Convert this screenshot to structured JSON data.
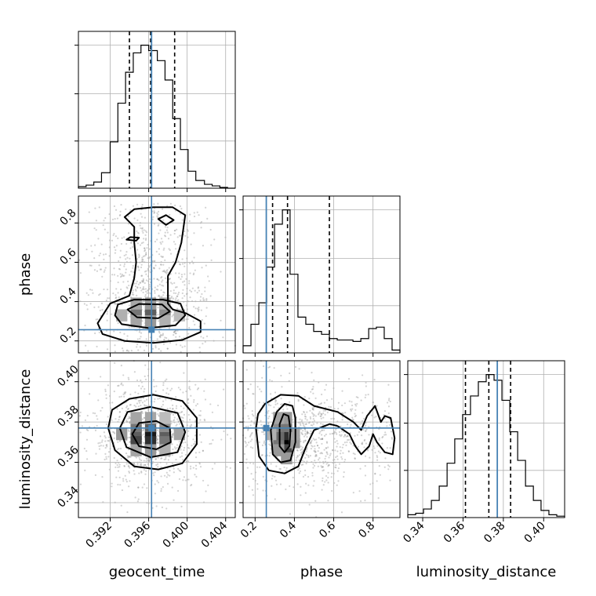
{
  "chart_data": {
    "type": "corner",
    "parameters": [
      "geocent_time",
      "phase",
      "luminosity_distance"
    ],
    "axis_labels": {
      "x": [
        "geocent_time",
        "phase",
        "luminosity_distance"
      ],
      "y": [
        "",
        "phase",
        "luminosity_distance"
      ]
    },
    "ranges": {
      "geocent_time": [
        0.3887,
        0.405
      ],
      "phase": [
        0.139,
        0.937
      ],
      "luminosity_distance": [
        0.3326,
        0.4104
      ]
    },
    "ticks": {
      "geocent_time": [
        "0.392",
        "0.396",
        "0.400",
        "0.404"
      ],
      "phase": [
        "0.2",
        "0.4",
        "0.6",
        "0.8"
      ],
      "phase_y": [
        "0.2",
        "0.4",
        "0.6",
        "0.8"
      ],
      "luminosity_distance": [
        "0.34",
        "0.36",
        "0.38",
        "0.40"
      ]
    },
    "tick_values": {
      "geocent_time": [
        0.392,
        0.396,
        0.4,
        0.404
      ],
      "phase": [
        0.2,
        0.4,
        0.6,
        0.8
      ],
      "luminosity_distance": [
        0.34,
        0.36,
        0.38,
        0.4
      ]
    },
    "truths": {
      "geocent_time": 0.3963,
      "phase": 0.257,
      "luminosity_distance": 0.377
    },
    "truth_color": "#4682b4",
    "quantiles": {
      "geocent_time": [
        0.394,
        0.3962,
        0.3987
      ],
      "phase": [
        0.289,
        0.365,
        0.578
      ],
      "luminosity_distance": [
        0.3612,
        0.3728,
        0.3836
      ]
    },
    "histograms": {
      "geocent_time": {
        "edges": [
          0.3887,
          0.3895,
          0.3903,
          0.3911,
          0.392,
          0.3928,
          0.3936,
          0.3944,
          0.3952,
          0.396,
          0.3969,
          0.3977,
          0.3985,
          0.3993,
          0.4001,
          0.4009,
          0.4018,
          0.4026,
          0.4034,
          0.4042,
          0.405
        ],
        "counts": [
          2,
          4,
          8,
          20,
          60,
          110,
          150,
          175,
          185,
          178,
          165,
          140,
          90,
          50,
          22,
          10,
          5,
          3,
          1,
          0
        ]
      },
      "phase": {
        "edges": [
          0.139,
          0.179,
          0.219,
          0.259,
          0.299,
          0.339,
          0.378,
          0.418,
          0.458,
          0.498,
          0.538,
          0.578,
          0.618,
          0.658,
          0.698,
          0.738,
          0.778,
          0.817,
          0.857,
          0.897,
          0.937
        ],
        "counts": [
          0.05,
          0.2,
          0.35,
          0.6,
          0.9,
          1.0,
          0.55,
          0.25,
          0.2,
          0.15,
          0.13,
          0.1,
          0.09,
          0.09,
          0.08,
          0.1,
          0.17,
          0.18,
          0.1,
          0.02
        ]
      },
      "luminosity_distance": {
        "edges": [
          0.3326,
          0.3365,
          0.3404,
          0.3443,
          0.3482,
          0.3521,
          0.3559,
          0.3598,
          0.3637,
          0.3676,
          0.3715,
          0.3754,
          0.3793,
          0.3832,
          0.3871,
          0.391,
          0.3949,
          0.3987,
          0.4026,
          0.4065,
          0.4104
        ],
        "counts": [
          0.02,
          0.03,
          0.06,
          0.12,
          0.22,
          0.38,
          0.55,
          0.72,
          0.85,
          0.95,
          1.0,
          0.96,
          0.82,
          0.6,
          0.4,
          0.22,
          0.12,
          0.05,
          0.02,
          0.01
        ]
      }
    },
    "contours_2d": {
      "geocent_time_vs_phase": [
        {
          "level": "outer",
          "points": [
            [
              0.3907,
              0.29
            ],
            [
              0.3912,
              0.235
            ],
            [
              0.3935,
              0.2
            ],
            [
              0.3965,
              0.19
            ],
            [
              0.3995,
              0.205
            ],
            [
              0.4014,
              0.245
            ],
            [
              0.4014,
              0.3
            ],
            [
              0.3999,
              0.34
            ],
            [
              0.3985,
              0.36
            ],
            [
              0.398,
              0.39
            ],
            [
              0.398,
              0.53
            ],
            [
              0.3988,
              0.6
            ],
            [
              0.3994,
              0.7
            ],
            [
              0.3998,
              0.84
            ],
            [
              0.3985,
              0.88
            ],
            [
              0.3965,
              0.88
            ],
            [
              0.3945,
              0.87
            ],
            [
              0.3935,
              0.83
            ],
            [
              0.3945,
              0.78
            ],
            [
              0.3945,
              0.7
            ],
            [
              0.3947,
              0.6
            ],
            [
              0.3945,
              0.52
            ],
            [
              0.394,
              0.43
            ],
            [
              0.392,
              0.39
            ]
          ]
        },
        {
          "level": "middle",
          "points": [
            [
              0.3925,
              0.33
            ],
            [
              0.3932,
              0.285
            ],
            [
              0.396,
              0.265
            ],
            [
              0.3988,
              0.28
            ],
            [
              0.3998,
              0.33
            ],
            [
              0.3993,
              0.39
            ],
            [
              0.3975,
              0.41
            ],
            [
              0.3945,
              0.41
            ],
            [
              0.3928,
              0.385
            ]
          ]
        },
        {
          "level": "inner",
          "points": [
            [
              0.3938,
              0.36
            ],
            [
              0.3948,
              0.32
            ],
            [
              0.397,
              0.315
            ],
            [
              0.3982,
              0.35
            ],
            [
              0.3974,
              0.385
            ],
            [
              0.395,
              0.388
            ]
          ]
        },
        {
          "level": "island-1",
          "points": [
            [
              0.397,
              0.82
            ],
            [
              0.3978,
              0.79
            ],
            [
              0.3986,
              0.815
            ],
            [
              0.3978,
              0.84
            ]
          ]
        },
        {
          "level": "island-2",
          "points": [
            [
              0.3937,
              0.715
            ],
            [
              0.3947,
              0.71
            ],
            [
              0.395,
              0.725
            ],
            [
              0.3941,
              0.728
            ]
          ]
        }
      ],
      "geocent_time_vs_luminosity_distance": [
        {
          "level": "outer",
          "points": [
            [
              0.3918,
              0.377
            ],
            [
              0.3925,
              0.366
            ],
            [
              0.3945,
              0.358
            ],
            [
              0.397,
              0.3565
            ],
            [
              0.3995,
              0.3595
            ],
            [
              0.401,
              0.369
            ],
            [
              0.401,
              0.382
            ],
            [
              0.3995,
              0.3905
            ],
            [
              0.3965,
              0.3935
            ],
            [
              0.394,
              0.3915
            ],
            [
              0.3922,
              0.386
            ]
          ]
        },
        {
          "level": "middle",
          "points": [
            [
              0.393,
              0.377
            ],
            [
              0.3937,
              0.3675
            ],
            [
              0.3962,
              0.3625
            ],
            [
              0.399,
              0.365
            ],
            [
              0.3998,
              0.375
            ],
            [
              0.399,
              0.3845
            ],
            [
              0.3962,
              0.3875
            ],
            [
              0.3938,
              0.385
            ]
          ]
        },
        {
          "level": "inner",
          "points": [
            [
              0.3943,
              0.374
            ],
            [
              0.395,
              0.368
            ],
            [
              0.3968,
              0.3665
            ],
            [
              0.3983,
              0.37
            ],
            [
              0.3982,
              0.377
            ],
            [
              0.3968,
              0.3805
            ],
            [
              0.395,
              0.3795
            ]
          ]
        }
      ],
      "phase_vs_luminosity_distance": [
        {
          "level": "outer",
          "points": [
            [
              0.205,
              0.377
            ],
            [
              0.22,
              0.363
            ],
            [
              0.27,
              0.356
            ],
            [
              0.35,
              0.3545
            ],
            [
              0.42,
              0.358
            ],
            [
              0.46,
              0.368
            ],
            [
              0.5,
              0.376
            ],
            [
              0.58,
              0.379
            ],
            [
              0.62,
              0.378
            ],
            [
              0.68,
              0.374
            ],
            [
              0.71,
              0.368
            ],
            [
              0.74,
              0.364
            ],
            [
              0.78,
              0.368
            ],
            [
              0.8,
              0.374
            ],
            [
              0.82,
              0.37
            ],
            [
              0.86,
              0.365
            ],
            [
              0.9,
              0.364
            ],
            [
              0.91,
              0.372
            ],
            [
              0.89,
              0.382
            ],
            [
              0.86,
              0.383
            ],
            [
              0.84,
              0.38
            ],
            [
              0.81,
              0.388
            ],
            [
              0.77,
              0.383
            ],
            [
              0.74,
              0.376
            ],
            [
              0.7,
              0.38
            ],
            [
              0.62,
              0.385
            ],
            [
              0.5,
              0.388
            ],
            [
              0.42,
              0.393
            ],
            [
              0.33,
              0.3935
            ],
            [
              0.25,
              0.389
            ],
            [
              0.215,
              0.384
            ]
          ]
        },
        {
          "level": "middle",
          "points": [
            [
              0.29,
              0.364
            ],
            [
              0.33,
              0.36
            ],
            [
              0.38,
              0.361
            ],
            [
              0.405,
              0.37
            ],
            [
              0.405,
              0.382
            ],
            [
              0.39,
              0.388
            ],
            [
              0.35,
              0.389
            ],
            [
              0.31,
              0.385
            ],
            [
              0.28,
              0.376
            ]
          ]
        },
        {
          "level": "inner",
          "points": [
            [
              0.325,
              0.368
            ],
            [
              0.35,
              0.365
            ],
            [
              0.375,
              0.368
            ],
            [
              0.38,
              0.376
            ],
            [
              0.37,
              0.383
            ],
            [
              0.345,
              0.384
            ],
            [
              0.325,
              0.379
            ]
          ]
        }
      ]
    },
    "density_cells": {
      "geocent_time_vs_phase": [
        {
          "x": 0.3947,
          "y": 0.36,
          "v": 0.7
        },
        {
          "x": 0.3962,
          "y": 0.36,
          "v": 0.9
        },
        {
          "x": 0.3977,
          "y": 0.36,
          "v": 0.6
        },
        {
          "x": 0.3947,
          "y": 0.33,
          "v": 0.5
        },
        {
          "x": 0.3962,
          "y": 0.33,
          "v": 0.6
        },
        {
          "x": 0.3977,
          "y": 0.33,
          "v": 0.4
        },
        {
          "x": 0.3932,
          "y": 0.33,
          "v": 0.25
        },
        {
          "x": 0.3992,
          "y": 0.33,
          "v": 0.2
        },
        {
          "x": 0.3947,
          "y": 0.3,
          "v": 0.3
        },
        {
          "x": 0.3962,
          "y": 0.3,
          "v": 0.35
        },
        {
          "x": 0.3977,
          "y": 0.3,
          "v": 0.25
        },
        {
          "x": 0.3947,
          "y": 0.39,
          "v": 0.3
        },
        {
          "x": 0.3962,
          "y": 0.39,
          "v": 0.35
        },
        {
          "x": 0.3977,
          "y": 0.39,
          "v": 0.25
        }
      ],
      "geocent_time_vs_luminosity_distance": [
        {
          "x": 0.3947,
          "y": 0.374,
          "v": 0.6
        },
        {
          "x": 0.3962,
          "y": 0.374,
          "v": 0.9
        },
        {
          "x": 0.3977,
          "y": 0.374,
          "v": 0.6
        },
        {
          "x": 0.3947,
          "y": 0.37,
          "v": 0.7
        },
        {
          "x": 0.3962,
          "y": 0.37,
          "v": 0.8
        },
        {
          "x": 0.3977,
          "y": 0.37,
          "v": 0.5
        },
        {
          "x": 0.3947,
          "y": 0.378,
          "v": 0.5
        },
        {
          "x": 0.3962,
          "y": 0.378,
          "v": 0.6
        },
        {
          "x": 0.3977,
          "y": 0.378,
          "v": 0.4
        },
        {
          "x": 0.3932,
          "y": 0.374,
          "v": 0.35
        },
        {
          "x": 0.3992,
          "y": 0.374,
          "v": 0.3
        },
        {
          "x": 0.3947,
          "y": 0.366,
          "v": 0.3
        },
        {
          "x": 0.3962,
          "y": 0.366,
          "v": 0.35
        },
        {
          "x": 0.3977,
          "y": 0.366,
          "v": 0.25
        },
        {
          "x": 0.3947,
          "y": 0.382,
          "v": 0.3
        },
        {
          "x": 0.3962,
          "y": 0.382,
          "v": 0.3
        },
        {
          "x": 0.3977,
          "y": 0.382,
          "v": 0.2
        }
      ],
      "phase_vs_luminosity_distance": [
        {
          "x": 0.36,
          "y": 0.37,
          "v": 1.0
        },
        {
          "x": 0.36,
          "y": 0.374,
          "v": 0.8
        },
        {
          "x": 0.36,
          "y": 0.366,
          "v": 0.7
        },
        {
          "x": 0.32,
          "y": 0.37,
          "v": 0.5
        },
        {
          "x": 0.32,
          "y": 0.374,
          "v": 0.55
        },
        {
          "x": 0.32,
          "y": 0.378,
          "v": 0.4
        },
        {
          "x": 0.4,
          "y": 0.37,
          "v": 0.35
        },
        {
          "x": 0.4,
          "y": 0.374,
          "v": 0.3
        },
        {
          "x": 0.36,
          "y": 0.378,
          "v": 0.5
        },
        {
          "x": 0.36,
          "y": 0.382,
          "v": 0.35
        },
        {
          "x": 0.32,
          "y": 0.382,
          "v": 0.3
        },
        {
          "x": 0.36,
          "y": 0.362,
          "v": 0.35
        },
        {
          "x": 0.32,
          "y": 0.366,
          "v": 0.35
        },
        {
          "x": 0.28,
          "y": 0.374,
          "v": 0.25
        }
      ]
    },
    "grid": true,
    "series_colors": {
      "contour": "#000000",
      "scatter": "#808080",
      "quantile_line": "#000000"
    }
  }
}
